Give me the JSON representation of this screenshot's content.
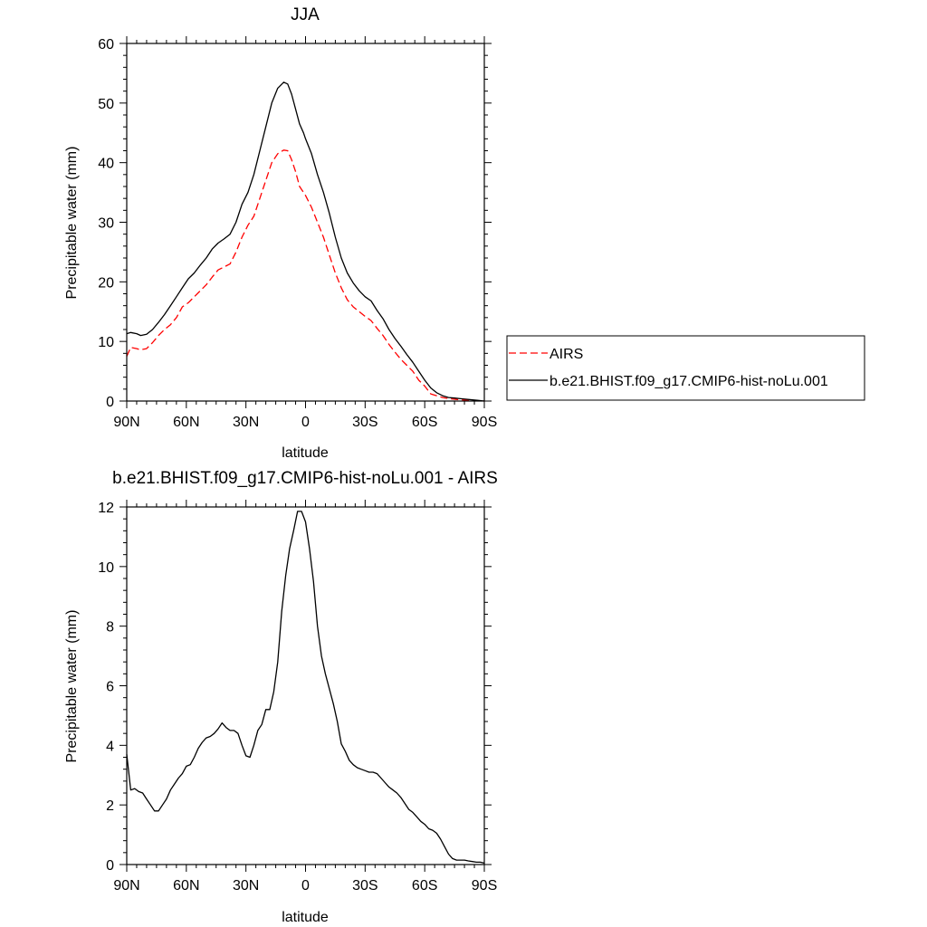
{
  "chart_data": [
    {
      "type": "line",
      "title": "JJA",
      "xlabel": "latitude",
      "ylabel": "Precipitable water (mm)",
      "xlim": [
        90,
        -90
      ],
      "ylim": [
        0,
        60
      ],
      "xticks": [
        90,
        60,
        30,
        0,
        -30,
        -60,
        -90
      ],
      "xtick_labels": [
        "90N",
        "60N",
        "30N",
        "0",
        "30S",
        "60S",
        "90S"
      ],
      "yticks": [
        0,
        10,
        20,
        30,
        40,
        50,
        60
      ],
      "ytick_labels": [
        "0",
        "10",
        "20",
        "30",
        "40",
        "50",
        "60"
      ],
      "legend_position": "right",
      "series": [
        {
          "name": "AIRS",
          "color": "#ff0000",
          "dash": true,
          "x": [
            90,
            88,
            85,
            83,
            80,
            77,
            74,
            71,
            68,
            65,
            62,
            59,
            56,
            53,
            50,
            47,
            44,
            41,
            38,
            35,
            32,
            29,
            26,
            23,
            20,
            17,
            14,
            11,
            9,
            7,
            5,
            3,
            1,
            0,
            -3,
            -6,
            -9,
            -12,
            -15,
            -18,
            -21,
            -24,
            -27,
            -30,
            -33,
            -36,
            -39,
            -42,
            -45,
            -48,
            -51,
            -54,
            -57,
            -60,
            -63,
            -66,
            -69,
            -72,
            -75,
            -78,
            -81,
            -84,
            -87,
            -90
          ],
          "y": [
            7.5,
            9,
            8.8,
            8.6,
            8.8,
            9.8,
            11,
            12,
            12.8,
            14,
            15.8,
            16.5,
            17.5,
            18.5,
            19.5,
            20.8,
            22,
            22.5,
            23,
            25,
            27.5,
            29.5,
            31,
            34,
            37,
            40,
            41.5,
            42.1,
            42,
            40.5,
            38.5,
            36,
            35,
            34.5,
            32.5,
            30,
            27.5,
            24.5,
            21.5,
            19,
            17,
            15.8,
            15,
            14.2,
            13.5,
            12.2,
            11,
            9.5,
            8.2,
            7,
            6,
            5,
            3.5,
            2.5,
            1.2,
            0.9,
            0.6,
            0.4,
            0.3,
            0.2,
            0.15,
            0.1,
            0.05,
            0
          ]
        },
        {
          "name": "b.e21.BHIST.f09_g17.CMIP6-hist-noLu.001",
          "color": "#000000",
          "dash": false,
          "x": [
            90,
            88,
            85,
            83,
            80,
            77,
            74,
            71,
            68,
            65,
            62,
            59,
            56,
            53,
            50,
            47,
            44,
            41,
            38,
            35,
            32,
            29,
            26,
            23,
            20,
            17,
            14,
            11,
            9,
            7,
            5,
            3,
            1,
            0,
            -3,
            -6,
            -9,
            -12,
            -15,
            -18,
            -21,
            -24,
            -27,
            -30,
            -33,
            -36,
            -39,
            -42,
            -45,
            -48,
            -51,
            -54,
            -57,
            -60,
            -63,
            -66,
            -69,
            -72,
            -75,
            -78,
            -81,
            -84,
            -87,
            -90
          ],
          "y": [
            11.3,
            11.5,
            11.3,
            11.0,
            11.2,
            12.0,
            13.2,
            14.5,
            16,
            17.5,
            19,
            20.5,
            21.5,
            22.8,
            24,
            25.5,
            26.5,
            27.2,
            28,
            30,
            33,
            35,
            38,
            42,
            46,
            50,
            52.5,
            53.5,
            53.2,
            51.5,
            49,
            46.5,
            45,
            44,
            41.5,
            38,
            35,
            31.5,
            27.5,
            24,
            21.5,
            19.8,
            18.5,
            17.5,
            16.8,
            15.2,
            13.8,
            12,
            10.5,
            9.2,
            7.8,
            6.5,
            5,
            3.5,
            2.2,
            1.4,
            0.9,
            0.6,
            0.5,
            0.4,
            0.3,
            0.2,
            0.1,
            0
          ]
        }
      ]
    },
    {
      "type": "line",
      "title": "b.e21.BHIST.f09_g17.CMIP6-hist-noLu.001 - AIRS",
      "xlabel": "latitude",
      "ylabel": "Precipitable water (mm)",
      "xlim": [
        90,
        -90
      ],
      "ylim": [
        0,
        12
      ],
      "xticks": [
        90,
        60,
        30,
        0,
        -30,
        -60,
        -90
      ],
      "xtick_labels": [
        "90N",
        "60N",
        "30N",
        "0",
        "30S",
        "60S",
        "90S"
      ],
      "yticks": [
        0,
        2,
        4,
        6,
        8,
        10,
        12
      ],
      "ytick_labels": [
        "0",
        "2",
        "4",
        "6",
        "8",
        "10",
        "12"
      ],
      "series": [
        {
          "color": "#000000",
          "dash": false,
          "x": [
            90,
            88,
            86,
            84,
            82,
            80,
            78,
            76,
            74,
            72,
            70,
            68,
            66,
            64,
            62,
            60,
            58,
            56,
            54,
            52,
            50,
            48,
            46,
            44,
            42,
            40,
            38,
            36,
            34,
            32,
            30,
            28,
            26,
            24,
            22,
            20,
            18,
            16,
            14,
            12,
            10,
            8,
            6,
            4,
            2,
            0,
            -2,
            -4,
            -6,
            -8,
            -10,
            -12,
            -14,
            -16,
            -18,
            -20,
            -22,
            -24,
            -26,
            -28,
            -30,
            -32,
            -34,
            -36,
            -38,
            -40,
            -42,
            -44,
            -46,
            -48,
            -50,
            -52,
            -54,
            -56,
            -58,
            -60,
            -62,
            -64,
            -66,
            -68,
            -70,
            -72,
            -74,
            -76,
            -78,
            -80,
            -82,
            -84,
            -86,
            -88,
            -90
          ],
          "y": [
            3.7,
            2.5,
            2.55,
            2.45,
            2.4,
            2.2,
            2.0,
            1.8,
            1.8,
            2.0,
            2.2,
            2.5,
            2.7,
            2.9,
            3.05,
            3.3,
            3.35,
            3.6,
            3.9,
            4.1,
            4.25,
            4.3,
            4.4,
            4.55,
            4.75,
            4.6,
            4.5,
            4.5,
            4.4,
            4.0,
            3.65,
            3.6,
            4.0,
            4.5,
            4.7,
            5.2,
            5.2,
            5.8,
            6.8,
            8.5,
            9.7,
            10.6,
            11.2,
            11.85,
            11.85,
            11.5,
            10.6,
            9.5,
            8.0,
            7.0,
            6.4,
            5.9,
            5.4,
            4.8,
            4.05,
            3.8,
            3.5,
            3.35,
            3.25,
            3.2,
            3.15,
            3.1,
            3.1,
            3.05,
            2.9,
            2.75,
            2.6,
            2.5,
            2.4,
            2.25,
            2.05,
            1.85,
            1.75,
            1.6,
            1.45,
            1.35,
            1.2,
            1.15,
            1.05,
            0.85,
            0.6,
            0.35,
            0.2,
            0.15,
            0.15,
            0.15,
            0.12,
            0.1,
            0.08,
            0.08,
            0.05
          ]
        }
      ]
    }
  ]
}
